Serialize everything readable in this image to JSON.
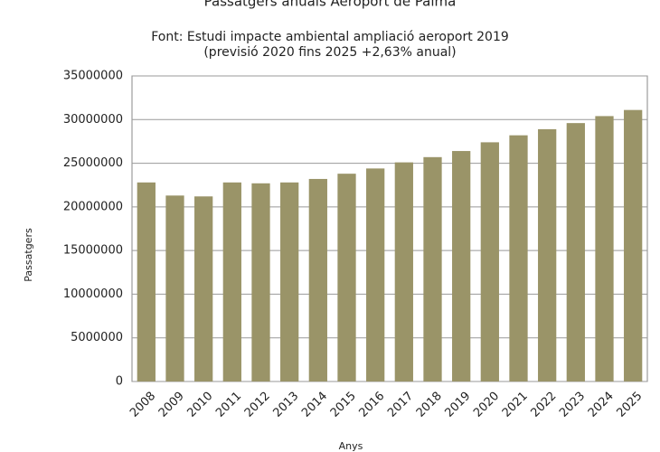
{
  "chart_data": {
    "type": "bar",
    "title": "Passatgers anuals Aeroport de Palma",
    "subtitle": [
      "Font: Estudi impacte ambiental ampliació aeroport 2019",
      "(previsió 2020 fins 2025 +2,63% anual)"
    ],
    "x_label": "Anys",
    "y_label": "Passatgers",
    "categories": [
      "2008",
      "2009",
      "2010",
      "2011",
      "2012",
      "2013",
      "2014",
      "2015",
      "2016",
      "2017",
      "2018",
      "2019",
      "2020",
      "2021",
      "2022",
      "2023",
      "2024",
      "2025"
    ],
    "values": [
      22800000,
      21300000,
      21200000,
      22800000,
      22700000,
      22800000,
      23200000,
      23800000,
      24400000,
      25100000,
      25700000,
      26400000,
      27400000,
      28200000,
      28900000,
      29600000,
      30400000,
      31100000
    ],
    "color": "#9a9468",
    "ylim": [
      0,
      35000000
    ],
    "yticks": [
      0,
      5000000,
      10000000,
      15000000,
      20000000,
      25000000,
      30000000,
      35000000
    ],
    "grid": true
  }
}
